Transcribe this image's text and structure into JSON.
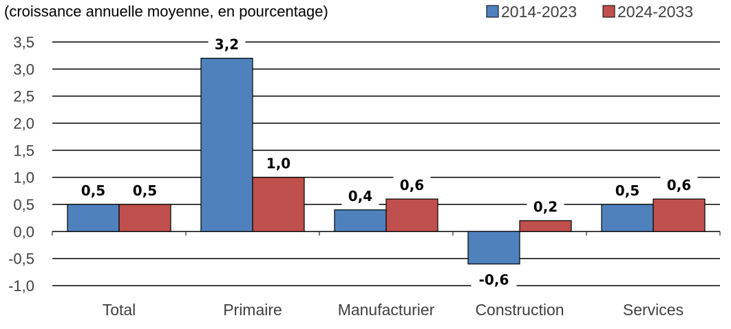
{
  "chart_data": {
    "type": "bar",
    "title": "(croissance annuelle moyenne, en pourcentage)",
    "categories": [
      "Total",
      "Primaire",
      "Manufacturier",
      "Construction",
      "Services"
    ],
    "series": [
      {
        "name": "2014-2023",
        "values": [
          0.5,
          3.2,
          0.4,
          -0.6,
          0.5
        ],
        "labels": [
          "0,5",
          "3,2",
          "0,4",
          "-0,6",
          "0,5"
        ]
      },
      {
        "name": "2024-2033",
        "values": [
          0.5,
          1.0,
          0.6,
          0.2,
          0.6
        ],
        "labels": [
          "0,5",
          "1,0",
          "0,6",
          "0,2",
          "0,6"
        ]
      }
    ],
    "ylim": [
      -1.0,
      3.5
    ],
    "yticks": [
      3.5,
      3.0,
      2.5,
      2.0,
      1.5,
      1.0,
      0.5,
      0.0,
      -0.5,
      -1.0
    ],
    "ytick_labels": [
      "3,5",
      "3,0",
      "2,5",
      "2,0",
      "1,5",
      "1,0",
      "0,5",
      "0,0",
      "-0,5",
      "-1,0"
    ],
    "grid": true,
    "legend_position": "top-right",
    "colors": [
      "#4f81bd",
      "#c0504d"
    ]
  }
}
